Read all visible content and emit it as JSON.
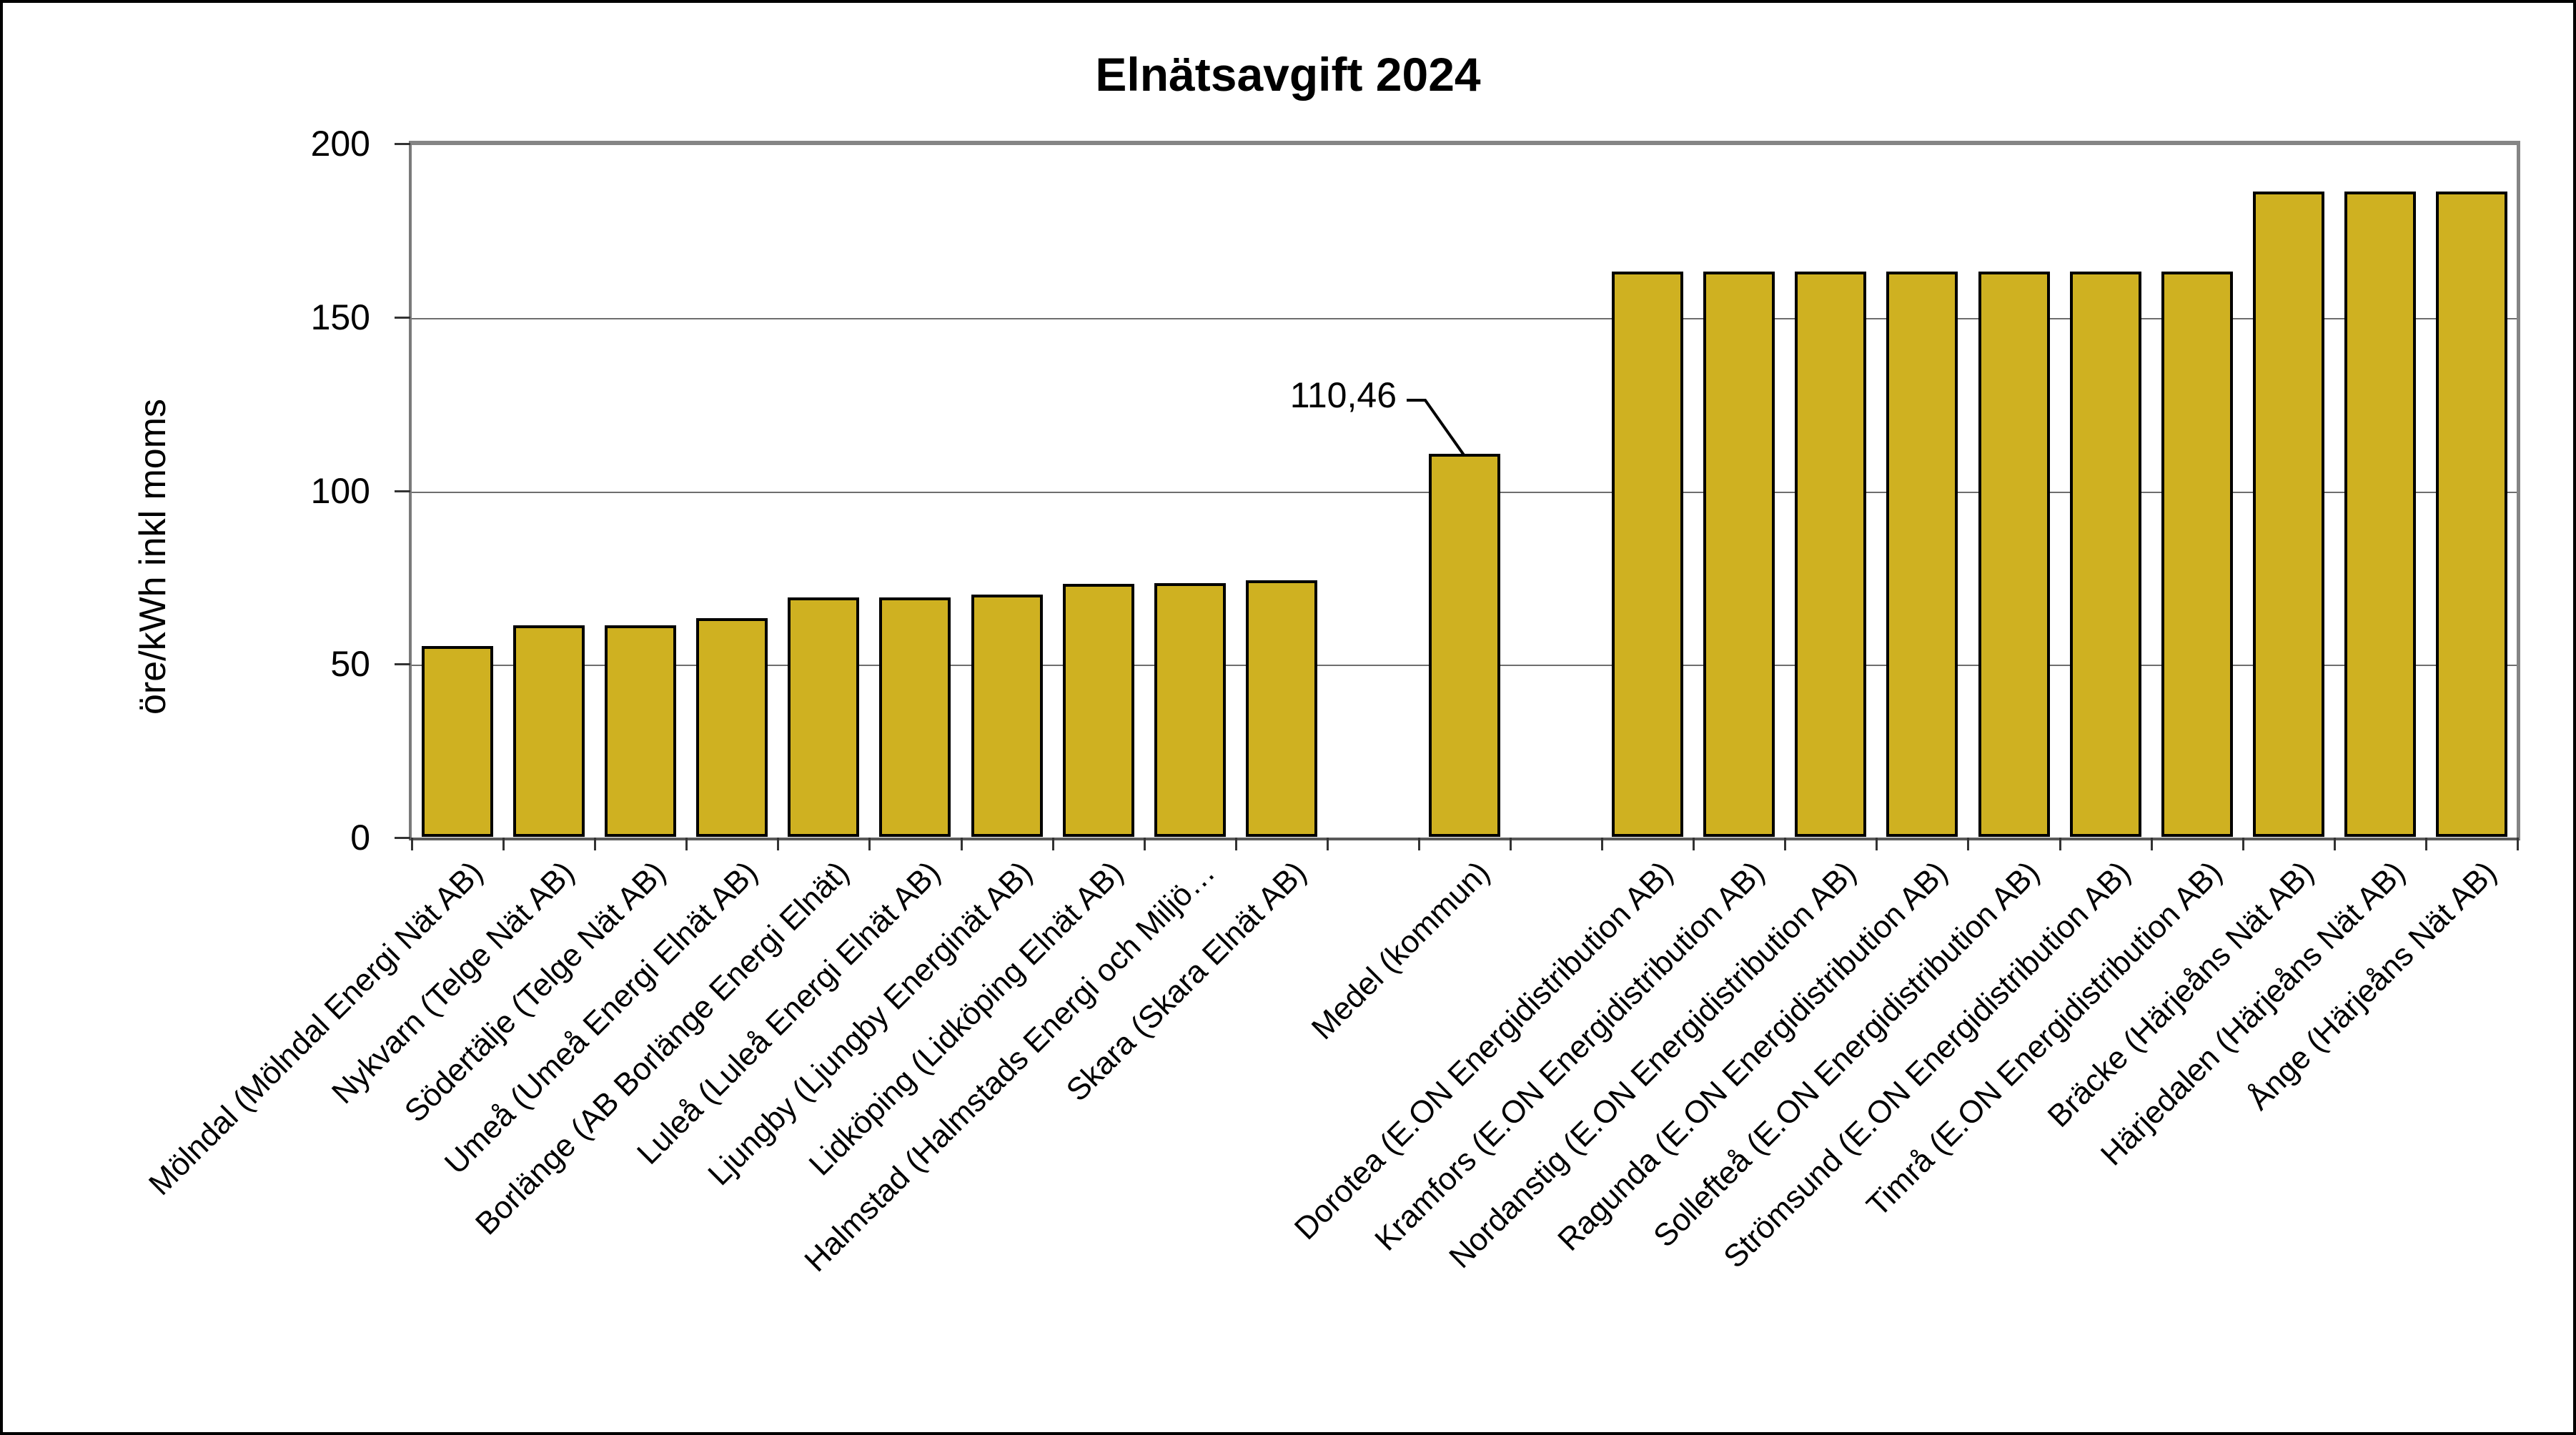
{
  "title": "Elnätsavgift 2024",
  "chart_data": {
    "type": "bar",
    "title": "Elnätsavgift 2024",
    "xlabel": "",
    "ylabel": "öre/kWh inkl moms",
    "ylim": [
      0,
      200
    ],
    "yticks": [
      "0",
      "50",
      "100",
      "150",
      "200"
    ],
    "grid": true,
    "legend": "none",
    "bar_color": "#CFB121",
    "bar_border_color": "#000000",
    "categories": [
      "Mölndal (Mölndal Energi Nät AB)",
      "Nykvarn (Telge Nät AB)",
      "Södertälje (Telge Nät AB)",
      "Umeå (Umeå Energi Elnät AB)",
      "Borlänge (AB Borlänge Energi Elnät)",
      "Luleå (Luleå Energi Elnät AB)",
      "Ljungby (Ljungby Energinät AB)",
      "Lidköping (Lidköping Elnät AB)",
      "Halmstad (Halmstads Energi och Miljö…",
      "Skara (Skara Elnät AB)",
      "",
      "Medel (kommun)",
      "",
      "Dorotea (E.ON Energidistribution AB)",
      "Kramfors (E.ON Energidistribution AB)",
      "Nordanstig (E.ON Energidistribution AB)",
      "Ragunda (E.ON Energidistribution AB)",
      "Sollefteå (E.ON Energidistribution AB)",
      "Strömsund (E.ON Energidistribution AB)",
      "Timrå (E.ON Energidistribution AB)",
      "Bräcke (Härjeåns Nät AB)",
      "Härjedalen (Härjeåns Nät AB)",
      "Ånge (Härjeåns Nät AB)"
    ],
    "values": [
      55.0,
      61.0,
      61.0,
      63.0,
      69.1,
      69.1,
      69.8,
      72.9,
      73.1,
      73.9,
      null,
      110.46,
      null,
      162.9,
      162.9,
      162.9,
      162.9,
      162.9,
      162.9,
      162.9,
      186.0,
      186.0,
      186.0
    ],
    "annotation": {
      "text": "110,46",
      "category": "Medel (kommun)",
      "value": 110.46
    }
  }
}
